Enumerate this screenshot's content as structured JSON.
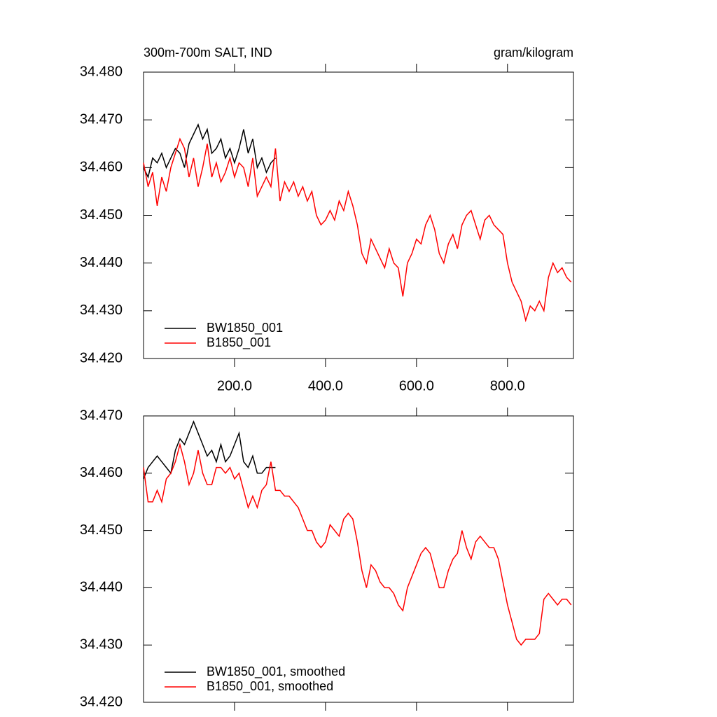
{
  "chart_data": [
    {
      "type": "line",
      "title": "300m-700m SALT, IND",
      "units": "gram/kilogram",
      "x": [
        0,
        10,
        20,
        30,
        40,
        50,
        60,
        70,
        80,
        90,
        100,
        110,
        120,
        130,
        140,
        150,
        160,
        170,
        180,
        190,
        200,
        210,
        220,
        230,
        240,
        250,
        260,
        270,
        280,
        290,
        300,
        310,
        320,
        330,
        340,
        350,
        360,
        370,
        380,
        390,
        400,
        410,
        420,
        430,
        440,
        450,
        460,
        470,
        480,
        490,
        500,
        510,
        520,
        530,
        540,
        550,
        560,
        570,
        580,
        590,
        600,
        610,
        620,
        630,
        640,
        650,
        660,
        670,
        680,
        690,
        700,
        710,
        720,
        730,
        740,
        750,
        760,
        770,
        780,
        790,
        800,
        810,
        820,
        830,
        840,
        850,
        860,
        870,
        880,
        890,
        900,
        910,
        920,
        930,
        940
      ],
      "series": [
        {
          "name": "BW1850_001",
          "color": "#000000",
          "values": [
            34.46,
            34.458,
            34.462,
            34.461,
            34.463,
            34.46,
            34.462,
            34.464,
            34.463,
            34.46,
            34.465,
            34.467,
            34.469,
            34.466,
            34.468,
            34.463,
            34.464,
            34.466,
            34.462,
            34.464,
            34.461,
            34.464,
            34.468,
            34.463,
            34.466,
            34.46,
            34.462,
            34.459,
            34.461,
            34.462,
            null,
            null,
            null,
            null,
            null,
            null,
            null,
            null,
            null,
            null,
            null,
            null,
            null,
            null,
            null,
            null,
            null,
            null,
            null,
            null,
            null,
            null,
            null,
            null,
            null,
            null,
            null,
            null,
            null,
            null,
            null,
            null,
            null,
            null,
            null,
            null,
            null,
            null,
            null,
            null,
            null,
            null,
            null,
            null,
            null,
            null,
            null,
            null,
            null,
            null,
            null,
            null,
            null,
            null,
            null,
            null,
            null,
            null,
            null,
            null,
            null,
            null,
            null,
            null,
            null
          ]
        },
        {
          "name": "B1850_001",
          "color": "#ff0000",
          "values": [
            34.461,
            34.456,
            34.459,
            34.452,
            34.458,
            34.455,
            34.46,
            34.463,
            34.466,
            34.464,
            34.458,
            34.462,
            34.456,
            34.46,
            34.465,
            34.458,
            34.461,
            34.457,
            34.459,
            34.462,
            34.458,
            34.461,
            34.46,
            34.456,
            34.462,
            34.454,
            34.456,
            34.458,
            34.456,
            34.464,
            34.453,
            34.457,
            34.455,
            34.457,
            34.454,
            34.456,
            34.453,
            34.455,
            34.45,
            34.448,
            34.449,
            34.451,
            34.449,
            34.453,
            34.451,
            34.455,
            34.452,
            34.448,
            34.442,
            34.44,
            34.445,
            34.443,
            34.441,
            34.439,
            34.443,
            34.44,
            34.439,
            34.433,
            34.44,
            34.442,
            34.445,
            34.444,
            34.448,
            34.45,
            34.447,
            34.442,
            34.44,
            34.444,
            34.446,
            34.443,
            34.448,
            34.45,
            34.451,
            34.448,
            34.445,
            34.449,
            34.45,
            34.448,
            34.447,
            34.446,
            34.44,
            34.436,
            34.434,
            34.432,
            34.428,
            34.431,
            34.43,
            34.432,
            34.43,
            34.437,
            34.44,
            34.438,
            34.439,
            34.437,
            34.436
          ]
        }
      ],
      "xlim": [
        0,
        945
      ],
      "xticks": [
        {
          "value": 200,
          "label": "200.0"
        },
        {
          "value": 400,
          "label": "400.0"
        },
        {
          "value": 600,
          "label": "600.0"
        },
        {
          "value": 800,
          "label": "800.0"
        }
      ],
      "ylim": [
        34.42,
        34.48
      ],
      "yticks": [
        {
          "value": 34.42,
          "label": "34.420"
        },
        {
          "value": 34.43,
          "label": "34.430"
        },
        {
          "value": 34.44,
          "label": "34.440"
        },
        {
          "value": 34.45,
          "label": "34.450"
        },
        {
          "value": 34.46,
          "label": "34.460"
        },
        {
          "value": 34.47,
          "label": "34.470"
        },
        {
          "value": 34.48,
          "label": "34.480"
        }
      ],
      "grid": false,
      "legend": "lower left"
    },
    {
      "type": "line",
      "x": [
        0,
        10,
        20,
        30,
        40,
        50,
        60,
        70,
        80,
        90,
        100,
        110,
        120,
        130,
        140,
        150,
        160,
        170,
        180,
        190,
        200,
        210,
        220,
        230,
        240,
        250,
        260,
        270,
        280,
        290,
        300,
        310,
        320,
        330,
        340,
        350,
        360,
        370,
        380,
        390,
        400,
        410,
        420,
        430,
        440,
        450,
        460,
        470,
        480,
        490,
        500,
        510,
        520,
        530,
        540,
        550,
        560,
        570,
        580,
        590,
        600,
        610,
        620,
        630,
        640,
        650,
        660,
        670,
        680,
        690,
        700,
        710,
        720,
        730,
        740,
        750,
        760,
        770,
        780,
        790,
        800,
        810,
        820,
        830,
        840,
        850,
        860,
        870,
        880,
        890,
        900,
        910,
        920,
        930,
        940
      ],
      "series": [
        {
          "name": "BW1850_001, smoothed",
          "color": "#000000",
          "values": [
            34.459,
            34.461,
            34.462,
            34.463,
            34.462,
            34.461,
            34.46,
            34.464,
            34.466,
            34.465,
            34.467,
            34.469,
            34.467,
            34.465,
            34.463,
            34.464,
            34.462,
            34.465,
            34.462,
            34.463,
            34.465,
            34.467,
            34.462,
            34.461,
            34.463,
            34.46,
            34.46,
            34.461,
            34.461,
            34.461,
            null,
            null,
            null,
            null,
            null,
            null,
            null,
            null,
            null,
            null,
            null,
            null,
            null,
            null,
            null,
            null,
            null,
            null,
            null,
            null,
            null,
            null,
            null,
            null,
            null,
            null,
            null,
            null,
            null,
            null,
            null,
            null,
            null,
            null,
            null,
            null,
            null,
            null,
            null,
            null,
            null,
            null,
            null,
            null,
            null,
            null,
            null,
            null,
            null,
            null,
            null,
            null,
            null,
            null,
            null,
            null,
            null,
            null,
            null,
            null,
            null,
            null,
            null,
            null,
            null
          ]
        },
        {
          "name": "B1850_001, smoothed",
          "color": "#ff0000",
          "values": [
            34.461,
            34.455,
            34.455,
            34.457,
            34.455,
            34.459,
            34.46,
            34.462,
            34.465,
            34.462,
            34.458,
            34.46,
            34.464,
            34.46,
            34.458,
            34.458,
            34.461,
            34.461,
            34.46,
            34.461,
            34.459,
            34.46,
            34.457,
            34.454,
            34.456,
            34.454,
            34.457,
            34.458,
            34.462,
            34.457,
            34.457,
            34.456,
            34.456,
            34.455,
            34.454,
            34.452,
            34.45,
            34.45,
            34.448,
            34.447,
            34.448,
            34.451,
            34.45,
            34.449,
            34.452,
            34.453,
            34.452,
            34.448,
            34.443,
            34.44,
            34.444,
            34.443,
            34.441,
            34.44,
            34.44,
            34.439,
            34.437,
            34.436,
            34.44,
            34.442,
            34.444,
            34.446,
            34.447,
            34.446,
            34.443,
            34.44,
            34.44,
            34.443,
            34.445,
            34.446,
            34.45,
            34.447,
            34.445,
            34.448,
            34.449,
            34.448,
            34.447,
            34.447,
            34.445,
            34.441,
            34.437,
            34.434,
            34.431,
            34.43,
            34.431,
            34.431,
            34.431,
            34.432,
            34.438,
            34.439,
            34.438,
            34.437,
            34.438,
            34.438,
            34.437
          ]
        }
      ],
      "xlim": [
        0,
        945
      ],
      "xticks": [
        200,
        400,
        600,
        800
      ],
      "show_xtick_labels": false,
      "ylim": [
        34.42,
        34.47
      ],
      "yticks": [
        {
          "value": 34.42,
          "label": "34.420"
        },
        {
          "value": 34.43,
          "label": "34.430"
        },
        {
          "value": 34.44,
          "label": "34.440"
        },
        {
          "value": 34.45,
          "label": "34.450"
        },
        {
          "value": 34.46,
          "label": "34.460"
        },
        {
          "value": 34.47,
          "label": "34.470"
        }
      ],
      "grid": false,
      "legend": "lower left"
    }
  ]
}
